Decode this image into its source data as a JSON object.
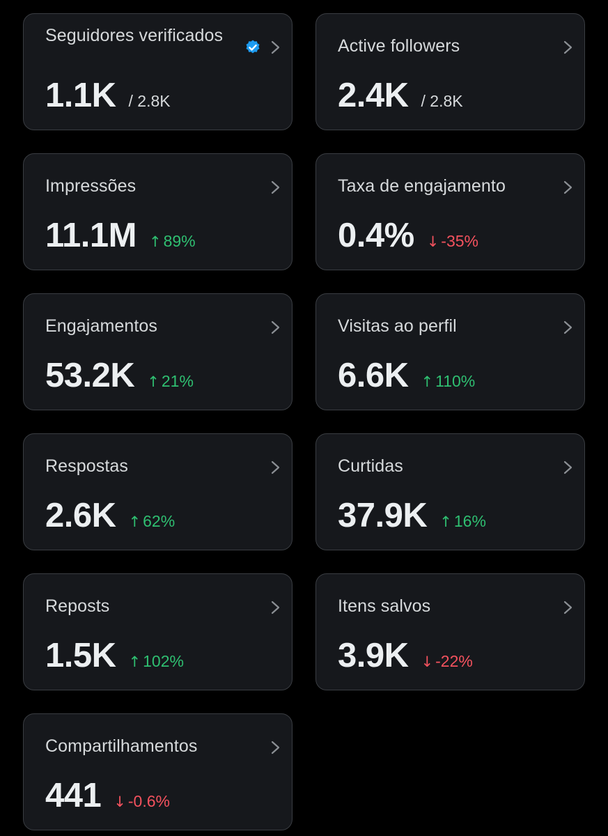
{
  "colors": {
    "background": "#000000",
    "card": "#16181c",
    "border": "#3a3d42",
    "verified_badge": "#1d9bf0",
    "positive": "#2fbf71",
    "negative": "#f4525e"
  },
  "cards": [
    {
      "title": "Seguidores verificados",
      "value": "1.1K",
      "total": "/ 2.8K",
      "verified_icon": "verified-badge-icon",
      "chevron_icon": "chevron-right-icon"
    },
    {
      "title": "Active followers",
      "value": "2.4K",
      "total": "/ 2.8K",
      "chevron_icon": "chevron-right-icon"
    },
    {
      "title": "Impressões",
      "value": "11.1M",
      "change": "89%",
      "direction": "up",
      "arrow": "↑",
      "chevron_icon": "chevron-right-icon"
    },
    {
      "title": "Taxa de engajamento",
      "value": "0.4%",
      "change": "-35%",
      "direction": "down",
      "arrow": "↓",
      "chevron_icon": "chevron-right-icon"
    },
    {
      "title": "Engajamentos",
      "value": "53.2K",
      "change": "21%",
      "direction": "up",
      "arrow": "↑",
      "chevron_icon": "chevron-right-icon"
    },
    {
      "title": "Visitas ao perfil",
      "value": "6.6K",
      "change": "110%",
      "direction": "up",
      "arrow": "↑",
      "chevron_icon": "chevron-right-icon"
    },
    {
      "title": "Respostas",
      "value": "2.6K",
      "change": "62%",
      "direction": "up",
      "arrow": "↑",
      "chevron_icon": "chevron-right-icon"
    },
    {
      "title": "Curtidas",
      "value": "37.9K",
      "change": "16%",
      "direction": "up",
      "arrow": "↑",
      "chevron_icon": "chevron-right-icon"
    },
    {
      "title": "Reposts",
      "value": "1.5K",
      "change": "102%",
      "direction": "up",
      "arrow": "↑",
      "chevron_icon": "chevron-right-icon"
    },
    {
      "title": "Itens salvos",
      "value": "3.9K",
      "change": "-22%",
      "direction": "down",
      "arrow": "↓",
      "chevron_icon": "chevron-right-icon"
    },
    {
      "title": "Compartilhamentos",
      "value": "441",
      "change": "-0.6%",
      "direction": "down",
      "arrow": "↓",
      "chevron_icon": "chevron-right-icon"
    }
  ]
}
